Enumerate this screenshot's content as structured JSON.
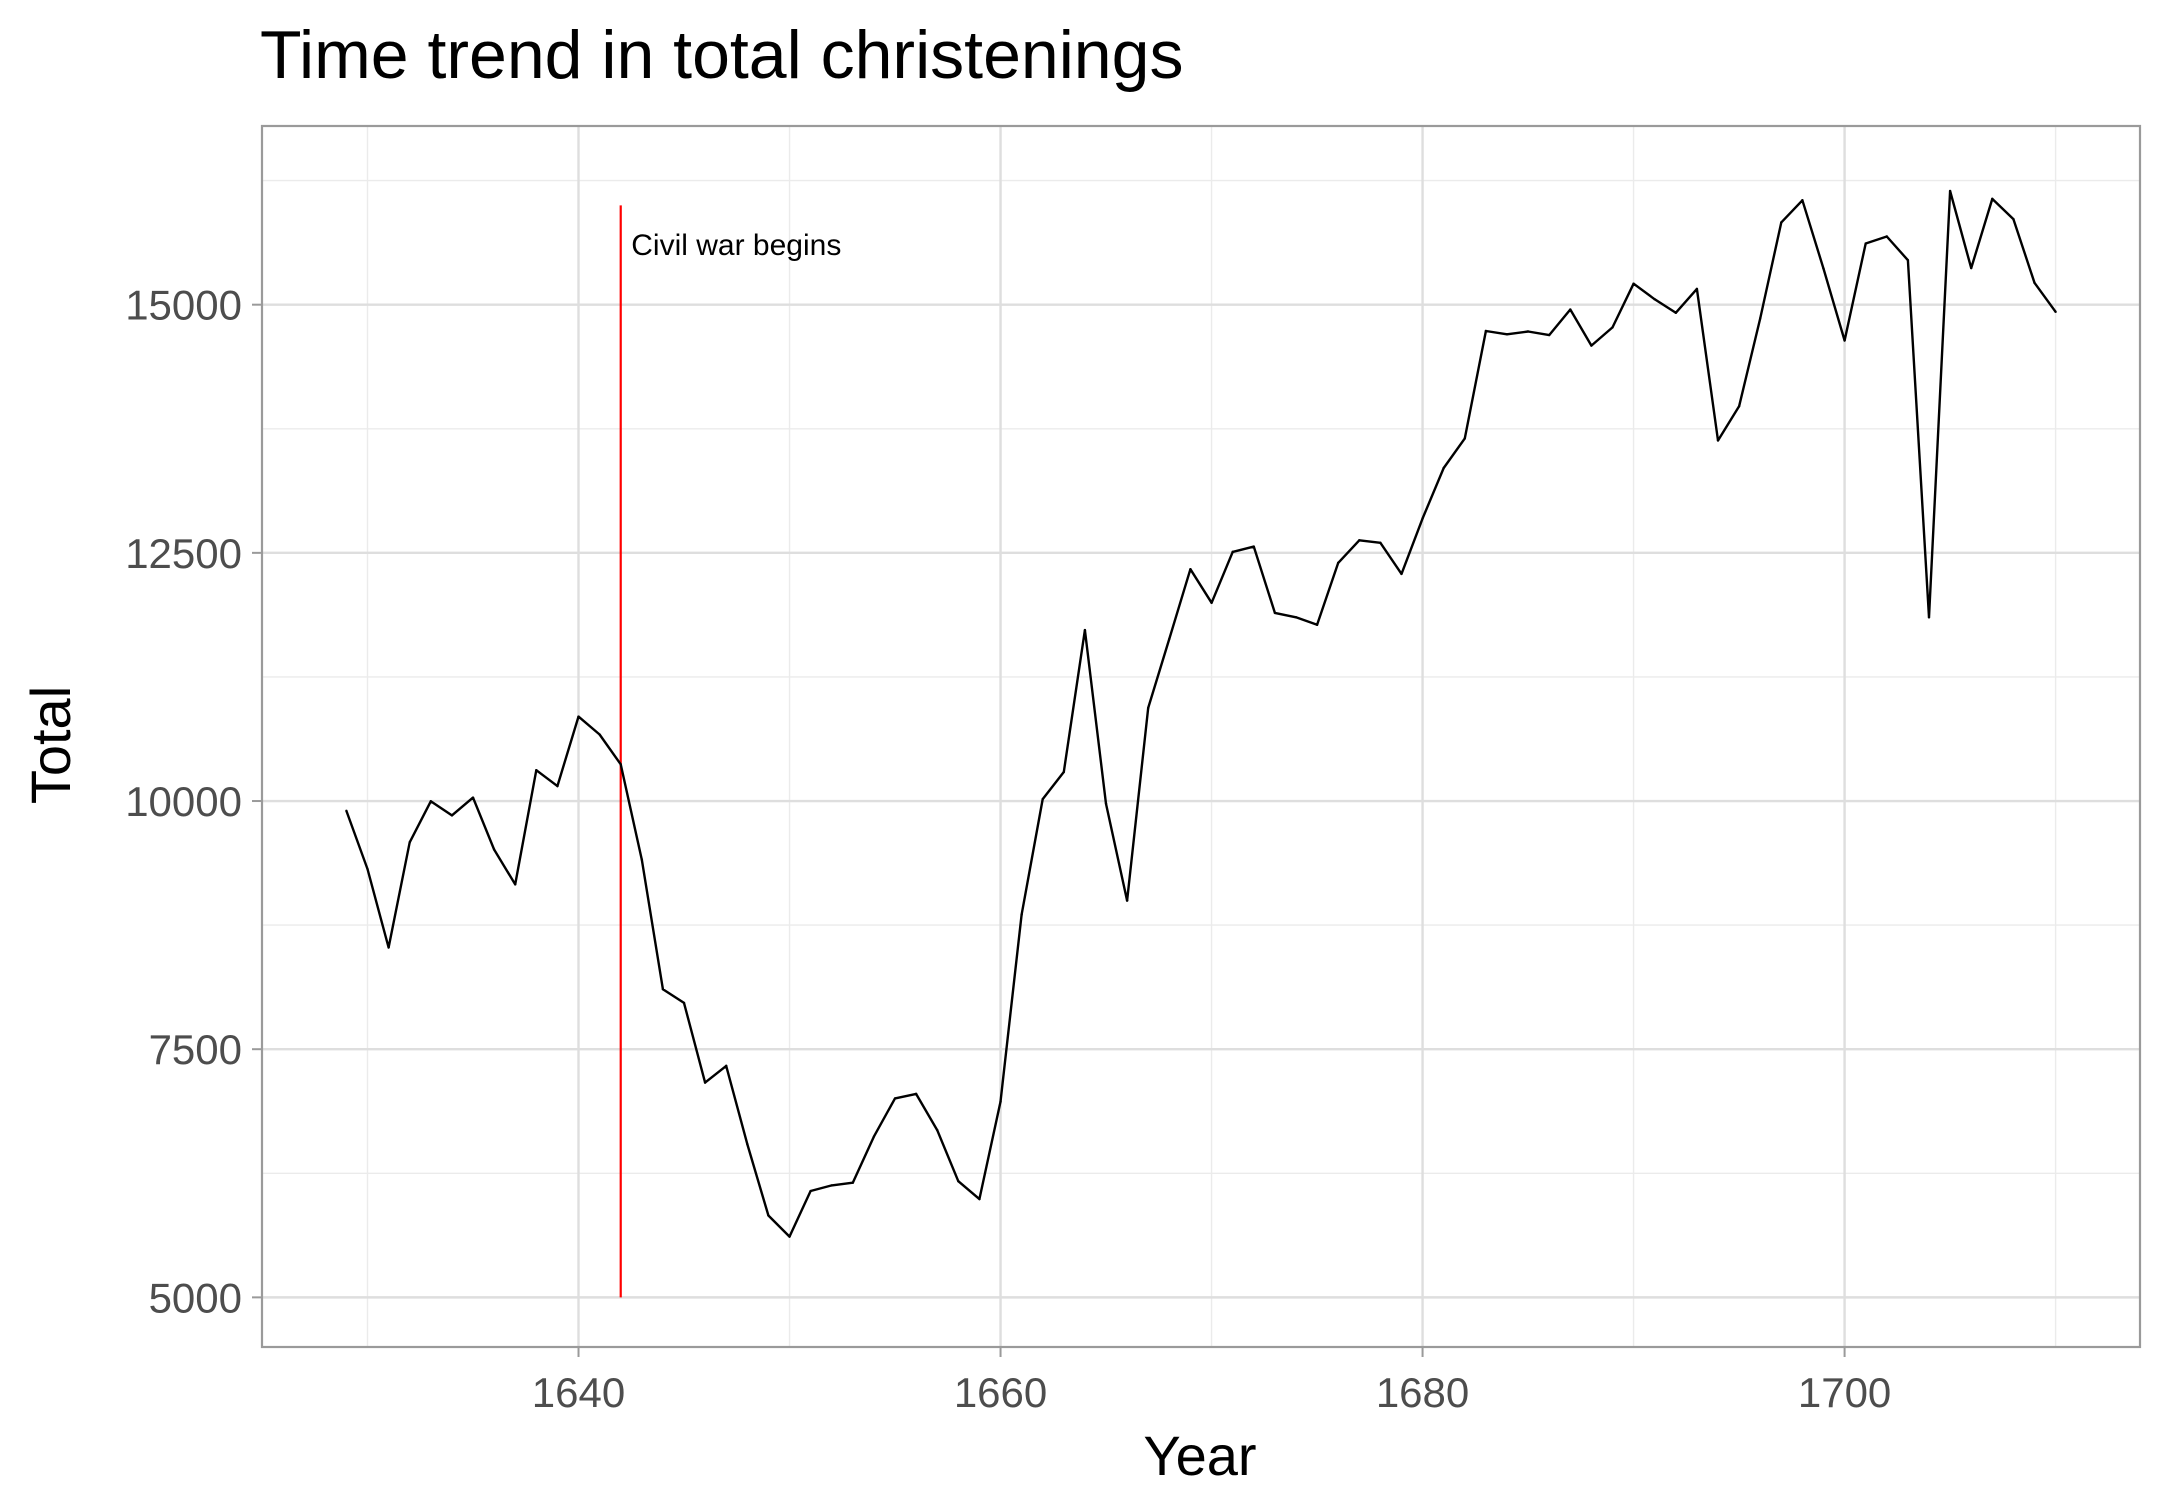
{
  "chart_data": {
    "type": "line",
    "title": "Time trend in total christenings",
    "xlabel": "Year",
    "ylabel": "Total",
    "xlim": [
      1625,
      1714
    ],
    "ylim": [
      4500,
      16800
    ],
    "x_ticks": [
      1640,
      1660,
      1680,
      1700
    ],
    "x_tick_labels": [
      "1640",
      "1660",
      "1680",
      "1700"
    ],
    "x_minor_ticks": [
      1630,
      1650,
      1670,
      1690,
      1710
    ],
    "y_ticks": [
      5000,
      7500,
      10000,
      12500,
      15000
    ],
    "y_tick_labels": [
      "5000",
      "7500",
      "10000",
      "12500",
      "15000"
    ],
    "y_minor_ticks": [
      6250,
      8750,
      11250,
      13750,
      16250
    ],
    "grid": true,
    "line_color": "#000000",
    "series": [
      {
        "x": [
          1629,
          1630,
          1631,
          1632,
          1633,
          1634,
          1635,
          1636,
          1637,
          1638,
          1639,
          1640,
          1641,
          1642,
          1643,
          1644,
          1645,
          1646,
          1647,
          1648,
          1649,
          1650,
          1651,
          1652,
          1653,
          1654,
          1655,
          1656,
          1657,
          1658,
          1659,
          1660,
          1661,
          1662,
          1663,
          1664,
          1665,
          1666,
          1667,
          1668,
          1669,
          1670,
          1671,
          1672,
          1673,
          1674,
          1675,
          1676,
          1677,
          1678,
          1679,
          1680,
          1681,
          1682,
          1683,
          1684,
          1685,
          1686,
          1687,
          1688,
          1689,
          1690,
          1691,
          1692,
          1693,
          1694,
          1695,
          1696,
          1697,
          1698,
          1699,
          1700,
          1701,
          1702,
          1703,
          1704,
          1705,
          1706,
          1707,
          1708,
          1709,
          1710
        ],
        "values": [
          9901,
          9315,
          8524,
          9584,
          9997,
          9855,
          10034,
          9512,
          9160,
          10311,
          10150,
          10850,
          10670,
          10370,
          9410,
          8104,
          7966,
          7163,
          7332,
          6544,
          5825,
          5612,
          6071,
          6128,
          6155,
          6620,
          7004,
          7050,
          6685,
          6170,
          5990,
          6971,
          8855,
          10019,
          10292,
          11722,
          9972,
          8997,
          10938,
          11633,
          12335,
          11997,
          12510,
          12563,
          11895,
          11851,
          11775,
          12399,
          12626,
          12601,
          12288,
          12847,
          13355,
          13653,
          14735,
          14702,
          14730,
          14694,
          14951,
          14588,
          14771,
          15211,
          15054,
          14918,
          15159,
          13632,
          13976,
          14861,
          15829,
          16052,
          15363,
          14639,
          15616,
          15687,
          15448,
          11851,
          16145,
          15369,
          16066,
          15862,
          15220,
          14928
        ]
      }
    ],
    "annotation": {
      "label": "Civil war begins",
      "x": 1642,
      "y_start": 5000,
      "y_end": 16000,
      "line_color": "#ff0000",
      "label_x": 1642.5,
      "label_y": 15500
    }
  }
}
